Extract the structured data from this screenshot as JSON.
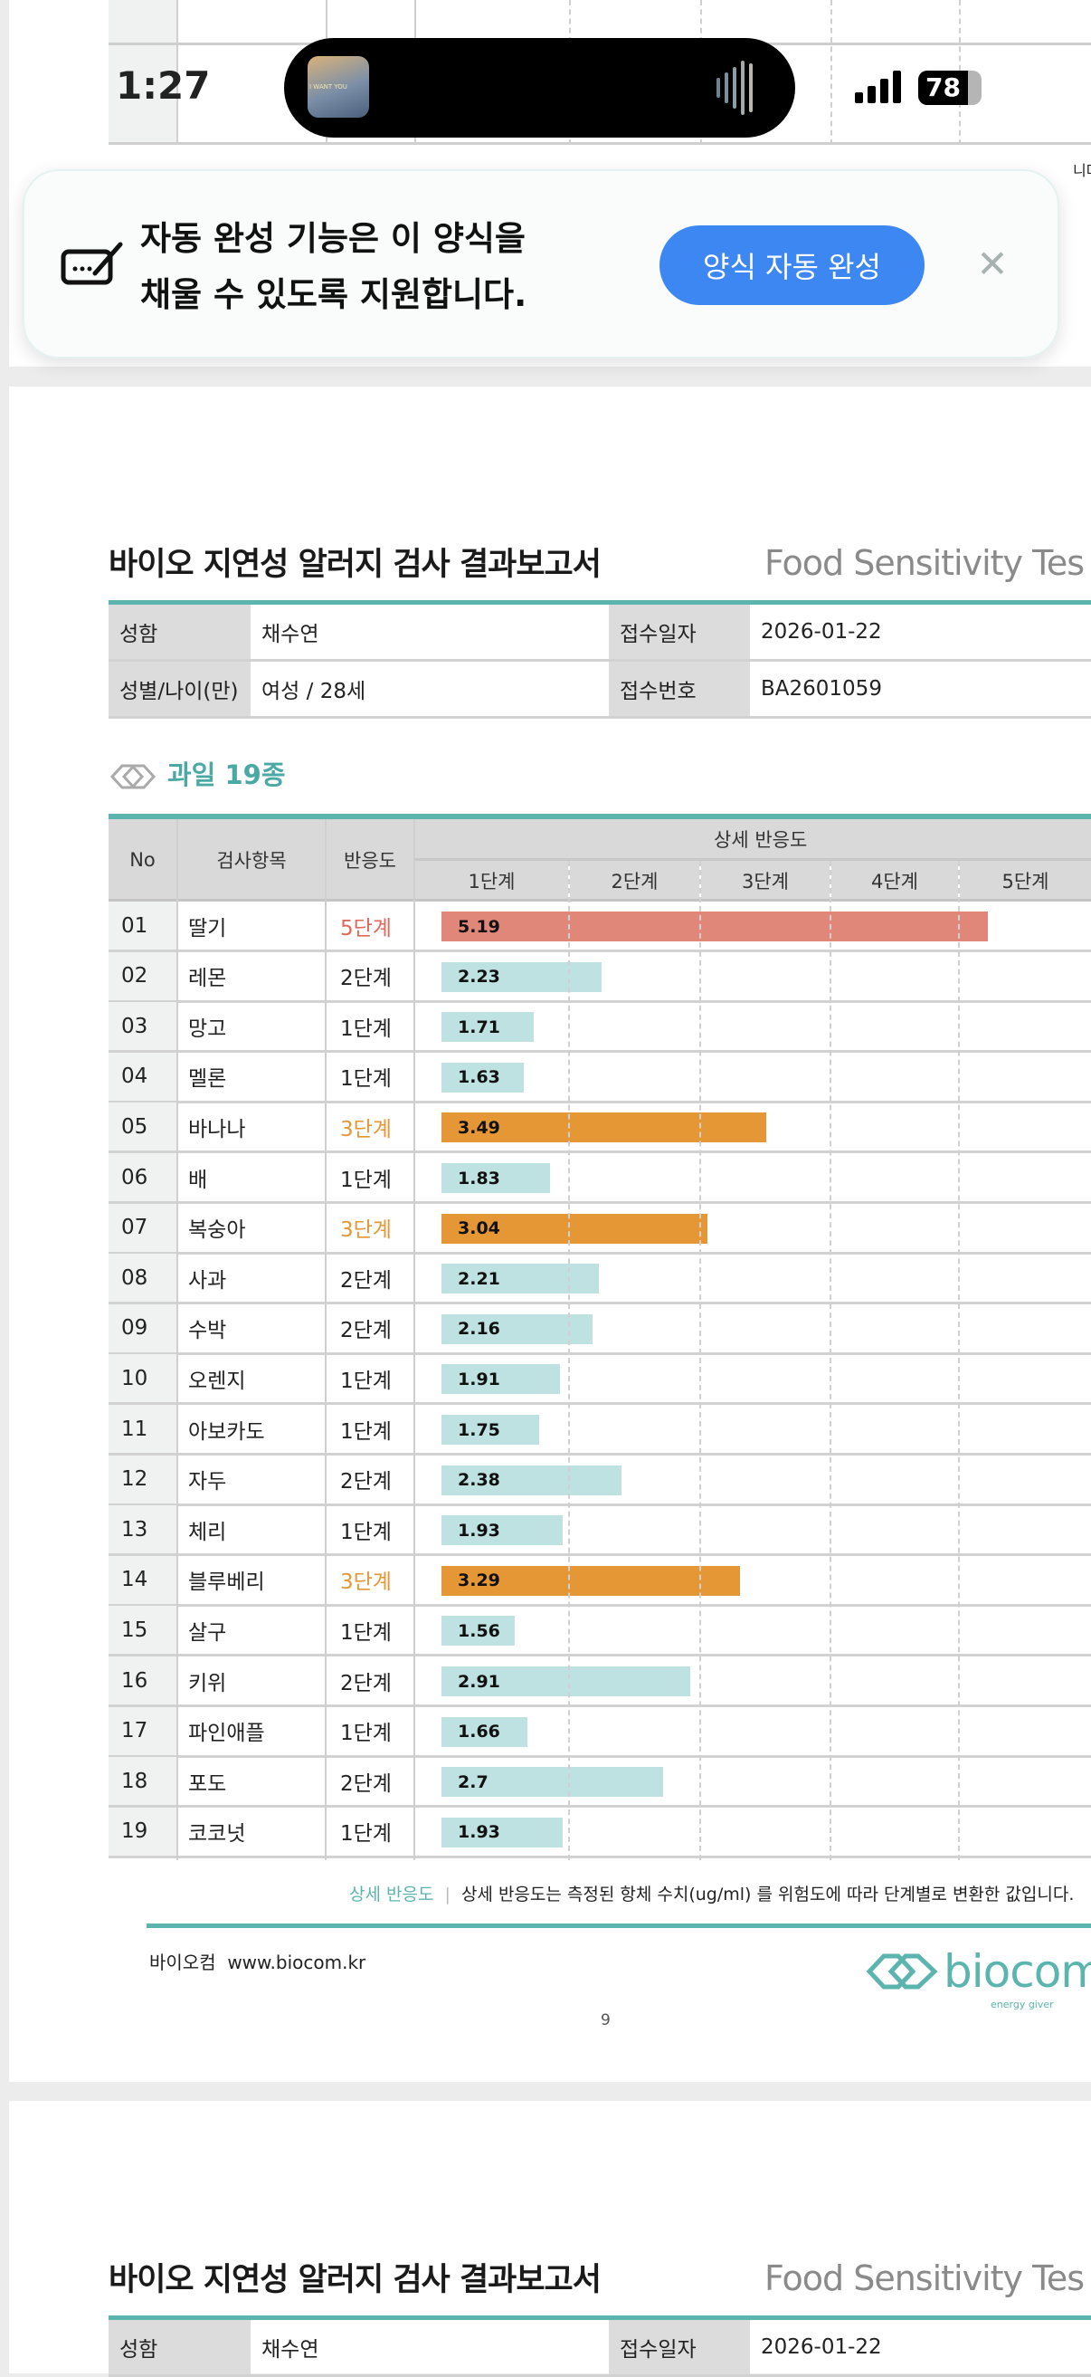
{
  "status_bar": {
    "time": "1:27",
    "battery": "78",
    "album_text": "I WANT YOU"
  },
  "autofill_banner": {
    "message_line1": "자동 완성 기능은 이 양식을",
    "message_line2": "채울 수 있도록 지원합니다.",
    "button_label": "양식 자동 완성",
    "close_label": "✕"
  },
  "report": {
    "title": "바이오 지연성 알러지 검사 결과보고서",
    "title_en": "Food Sensitivity Tes",
    "info": {
      "name_label": "성함",
      "name": "채수연",
      "date_label": "접수일자",
      "date": "2026-01-22",
      "gender_age_label": "성별/나이(만)",
      "gender_age": "여성 / 28세",
      "number_label": "접수번호",
      "number": "BA2601059"
    },
    "section_title": "과일 19종",
    "table_headers": {
      "no": "No",
      "item": "검사항목",
      "reaction": "반응도",
      "detail": "상세 반응도",
      "stages": [
        "1단계",
        "2단계",
        "3단계",
        "4단계",
        "5단계"
      ]
    },
    "colors": {
      "level5": "#E0877A",
      "level3": "#E59735",
      "normal": "#BEE2E1",
      "level5_text": "#E0685A",
      "level3_text": "#E59735",
      "accent": "#5BB5AE"
    },
    "rows": [
      {
        "no": "01",
        "item": "딸기",
        "stage": "5단계",
        "value": 5.19,
        "label": "5.19",
        "level": 5
      },
      {
        "no": "02",
        "item": "레몬",
        "stage": "2단계",
        "value": 2.23,
        "label": "2.23",
        "level": 2
      },
      {
        "no": "03",
        "item": "망고",
        "stage": "1단계",
        "value": 1.71,
        "label": "1.71",
        "level": 1
      },
      {
        "no": "04",
        "item": "멜론",
        "stage": "1단계",
        "value": 1.63,
        "label": "1.63",
        "level": 1
      },
      {
        "no": "05",
        "item": "바나나",
        "stage": "3단계",
        "value": 3.49,
        "label": "3.49",
        "level": 3
      },
      {
        "no": "06",
        "item": "배",
        "stage": "1단계",
        "value": 1.83,
        "label": "1.83",
        "level": 1
      },
      {
        "no": "07",
        "item": "복숭아",
        "stage": "3단계",
        "value": 3.04,
        "label": "3.04",
        "level": 3
      },
      {
        "no": "08",
        "item": "사과",
        "stage": "2단계",
        "value": 2.21,
        "label": "2.21",
        "level": 2
      },
      {
        "no": "09",
        "item": "수박",
        "stage": "2단계",
        "value": 2.16,
        "label": "2.16",
        "level": 2
      },
      {
        "no": "10",
        "item": "오렌지",
        "stage": "1단계",
        "value": 1.91,
        "label": "1.91",
        "level": 1
      },
      {
        "no": "11",
        "item": "아보카도",
        "stage": "1단계",
        "value": 1.75,
        "label": "1.75",
        "level": 1
      },
      {
        "no": "12",
        "item": "자두",
        "stage": "2단계",
        "value": 2.38,
        "label": "2.38",
        "level": 2
      },
      {
        "no": "13",
        "item": "체리",
        "stage": "1단계",
        "value": 1.93,
        "label": "1.93",
        "level": 1
      },
      {
        "no": "14",
        "item": "블루베리",
        "stage": "3단계",
        "value": 3.29,
        "label": "3.29",
        "level": 3
      },
      {
        "no": "15",
        "item": "살구",
        "stage": "1단계",
        "value": 1.56,
        "label": "1.56",
        "level": 1
      },
      {
        "no": "16",
        "item": "키위",
        "stage": "2단계",
        "value": 2.91,
        "label": "2.91",
        "level": 2
      },
      {
        "no": "17",
        "item": "파인애플",
        "stage": "1단계",
        "value": 1.66,
        "label": "1.66",
        "level": 1
      },
      {
        "no": "18",
        "item": "포도",
        "stage": "2단계",
        "value": 2.7,
        "label": "2.7",
        "level": 2
      },
      {
        "no": "19",
        "item": "코코넛",
        "stage": "1단계",
        "value": 1.93,
        "label": "1.93",
        "level": 1
      }
    ],
    "note_label": "상세 반응도",
    "note_text": "상세 반응도는 측정된 항체 수치(ug/ml) 를 위험도에 따라 단계별로 변환한 값입니다.",
    "footer_company": "바이오컴  www.biocom.kr",
    "logo_text": "biocom",
    "logo_tagline": "energy giver",
    "page_number": "9",
    "partial_note": "니다."
  }
}
